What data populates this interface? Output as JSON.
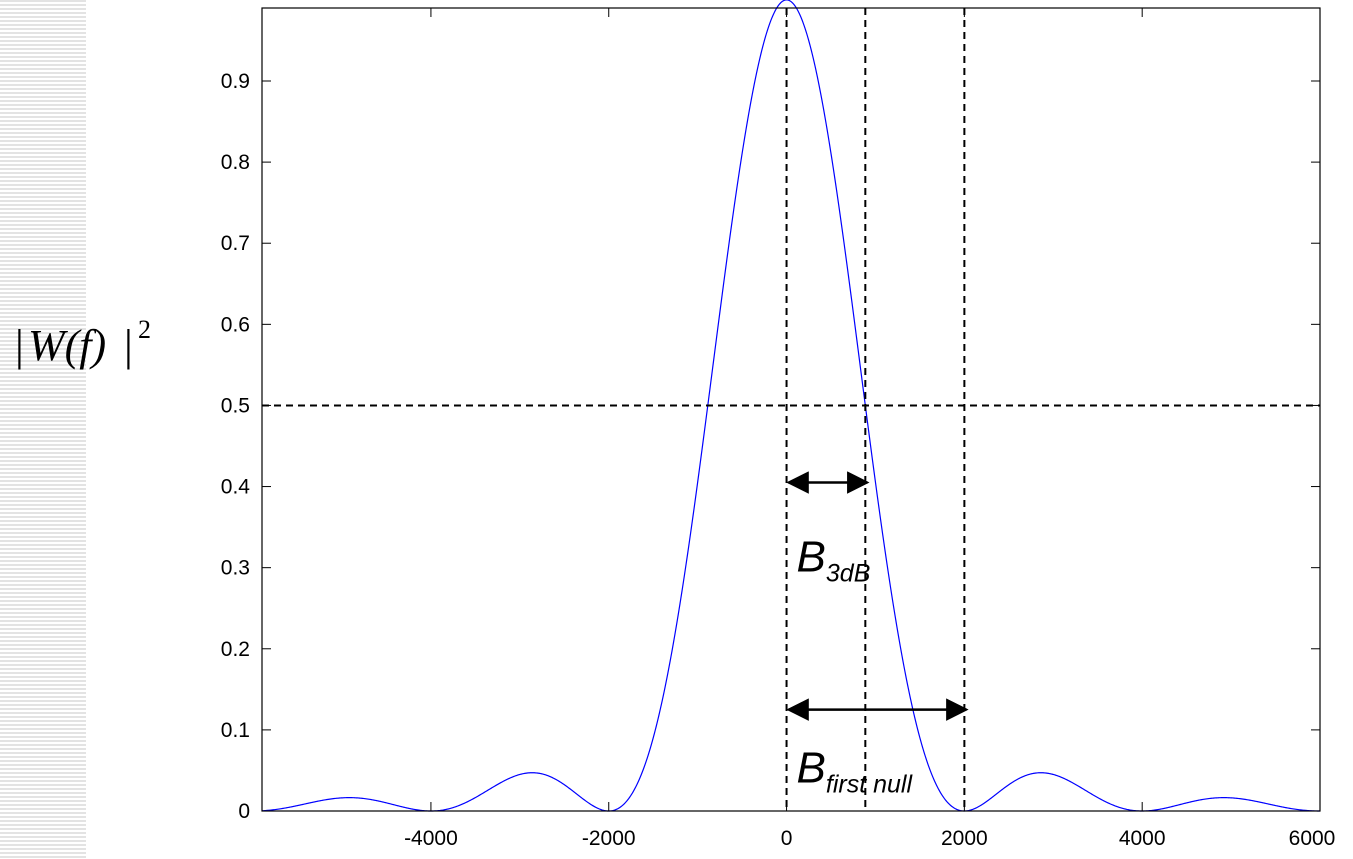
{
  "chart_data": {
    "type": "line",
    "title": "",
    "xlabel": "",
    "ylabel": {
      "text_main": "W(f)",
      "exponent": "2",
      "format": "magnitude squared"
    },
    "xlim": [
      -5900,
      6000
    ],
    "ylim": [
      0,
      0.99
    ],
    "x_ticks": [
      -4000,
      -2000,
      0,
      2000,
      4000,
      6000
    ],
    "x_tick_labels": [
      "-4000",
      "-2000",
      "0",
      "2000",
      "4000",
      "6000"
    ],
    "y_ticks": [
      0,
      0.1,
      0.2,
      0.3,
      0.4,
      0.5,
      0.6,
      0.7,
      0.8,
      0.9
    ],
    "y_tick_labels": [
      "0",
      "0.1",
      "0.2",
      "0.3",
      "0.4",
      "0.5",
      "0.6",
      "0.7",
      "0.8",
      "0.9"
    ],
    "grid": false,
    "series": [
      {
        "color": "#0000ff",
        "function": "sinc^2",
        "first_null": 2000,
        "peak": 1.0,
        "x": [
          -5900,
          -5500,
          -5000,
          -4500,
          -4000,
          -3500,
          -3000,
          -2800,
          -2500,
          -2000,
          -1500,
          -1000,
          -886,
          -500,
          0,
          500,
          886,
          1000,
          1500,
          2000,
          2500,
          2800,
          3000,
          3500,
          4000,
          4500,
          5000,
          5500,
          6000
        ],
        "y": [
          0.001,
          0.007,
          0.016,
          0.009,
          0,
          0.014,
          0.045,
          0.047,
          0.026,
          0,
          0.18,
          0.405,
          0.5,
          0.81,
          1.0,
          0.81,
          0.5,
          0.405,
          0.18,
          0,
          0.026,
          0.047,
          0.045,
          0.014,
          0,
          0.009,
          0.016,
          0.007,
          0.001
        ]
      }
    ],
    "reference_lines": {
      "horizontal_dashed_y": 0.5,
      "vertical_dashed_x": [
        0,
        886,
        2000
      ]
    },
    "annotations": [
      {
        "id": "b3db",
        "main": "B",
        "sub": "3dB",
        "arrow_from_x": 0,
        "arrow_to_x": 886,
        "arrow_y": 0.405
      },
      {
        "id": "bnull",
        "main": "B",
        "sub": "first null",
        "arrow_from_x": 0,
        "arrow_to_x": 2000,
        "arrow_y": 0.125
      }
    ]
  }
}
